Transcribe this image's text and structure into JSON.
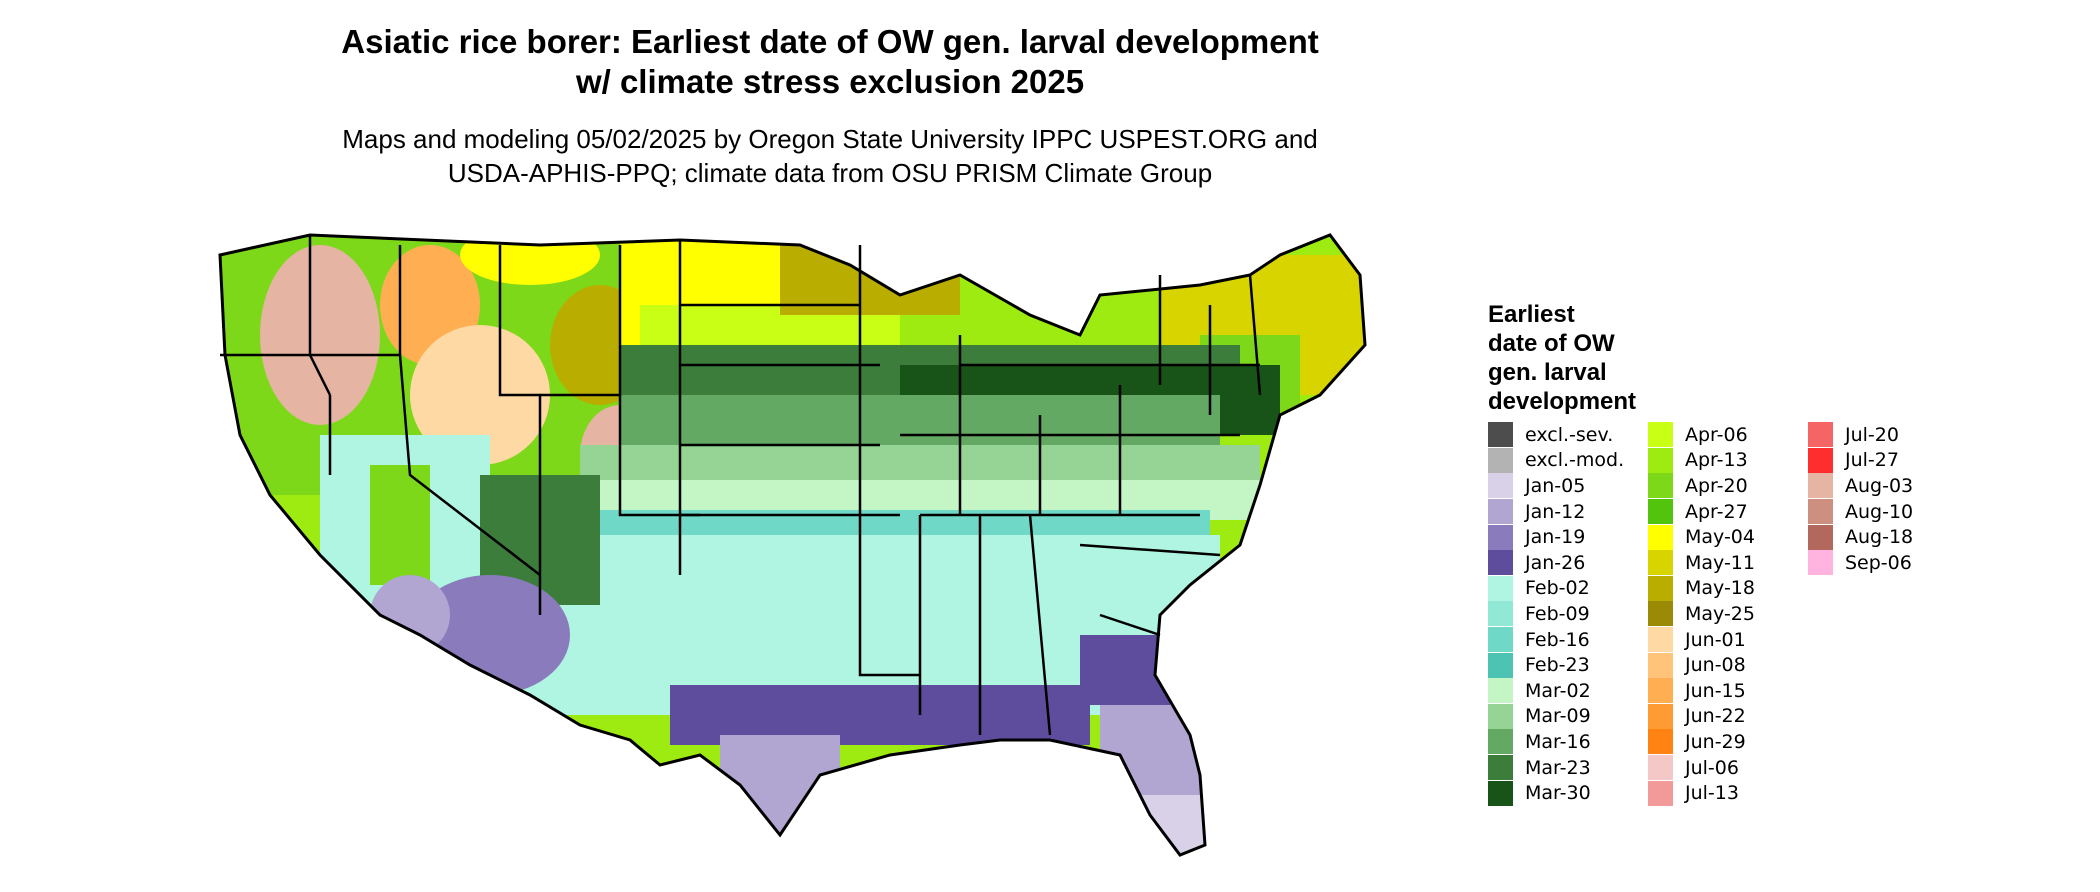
{
  "title_line1": "Asiatic rice borer: Earliest date of OW gen. larval development",
  "title_line2": "w/ climate stress exclusion 2025",
  "subtitle_line1": "Maps and modeling 05/02/2025 by Oregon State University IPPC USPEST.ORG and",
  "subtitle_line2": "USDA-APHIS-PPQ; climate data from OSU PRISM Climate Group",
  "legend": {
    "title_lines": [
      "Earliest",
      "date of OW",
      "gen. larval",
      "development"
    ],
    "columns": [
      [
        {
          "label": "excl.-sev.",
          "color": "#4d4d4d"
        },
        {
          "label": "excl.-mod.",
          "color": "#b3b3b3"
        },
        {
          "label": "Jan-05",
          "color": "#d9d1e8"
        },
        {
          "label": "Jan-12",
          "color": "#b1a5d1"
        },
        {
          "label": "Jan-19",
          "color": "#8a7bbd"
        },
        {
          "label": "Jan-26",
          "color": "#5e4d9c"
        },
        {
          "label": "Feb-02",
          "color": "#aff5e1"
        },
        {
          "label": "Feb-09",
          "color": "#91e8d4"
        },
        {
          "label": "Feb-16",
          "color": "#6fd8c6"
        },
        {
          "label": "Feb-23",
          "color": "#4dc3b3"
        },
        {
          "label": "Mar-02",
          "color": "#c4f5c4"
        },
        {
          "label": "Mar-09",
          "color": "#95d495"
        },
        {
          "label": "Mar-16",
          "color": "#63a863"
        },
        {
          "label": "Mar-23",
          "color": "#3c7d3c"
        },
        {
          "label": "Mar-30",
          "color": "#185418"
        }
      ],
      [
        {
          "label": "Apr-06",
          "color": "#c8ff14"
        },
        {
          "label": "Apr-13",
          "color": "#9eeb12"
        },
        {
          "label": "Apr-20",
          "color": "#7ed81a"
        },
        {
          "label": "Apr-27",
          "color": "#52c40e"
        },
        {
          "label": "May-04",
          "color": "#ffff00"
        },
        {
          "label": "May-11",
          "color": "#d8d400"
        },
        {
          "label": "May-18",
          "color": "#b9ae00"
        },
        {
          "label": "May-25",
          "color": "#9a8a06"
        },
        {
          "label": "Jun-01",
          "color": "#ffd9a3"
        },
        {
          "label": "Jun-08",
          "color": "#ffc47a"
        },
        {
          "label": "Jun-15",
          "color": "#ffaf52"
        },
        {
          "label": "Jun-22",
          "color": "#ff9b33"
        },
        {
          "label": "Jun-29",
          "color": "#ff8312"
        },
        {
          "label": "Jul-06",
          "color": "#f5c8c8"
        },
        {
          "label": "Jul-13",
          "color": "#f29a9a"
        }
      ],
      [
        {
          "label": "Jul-20",
          "color": "#f56565"
        },
        {
          "label": "Jul-27",
          "color": "#ff2e2e"
        },
        {
          "label": "Aug-03",
          "color": "#e5b4a3"
        },
        {
          "label": "Aug-10",
          "color": "#cc8f80"
        },
        {
          "label": "Aug-18",
          "color": "#b3685e"
        },
        {
          "label": "Sep-06",
          "color": "#ffb3de"
        }
      ]
    ]
  }
}
